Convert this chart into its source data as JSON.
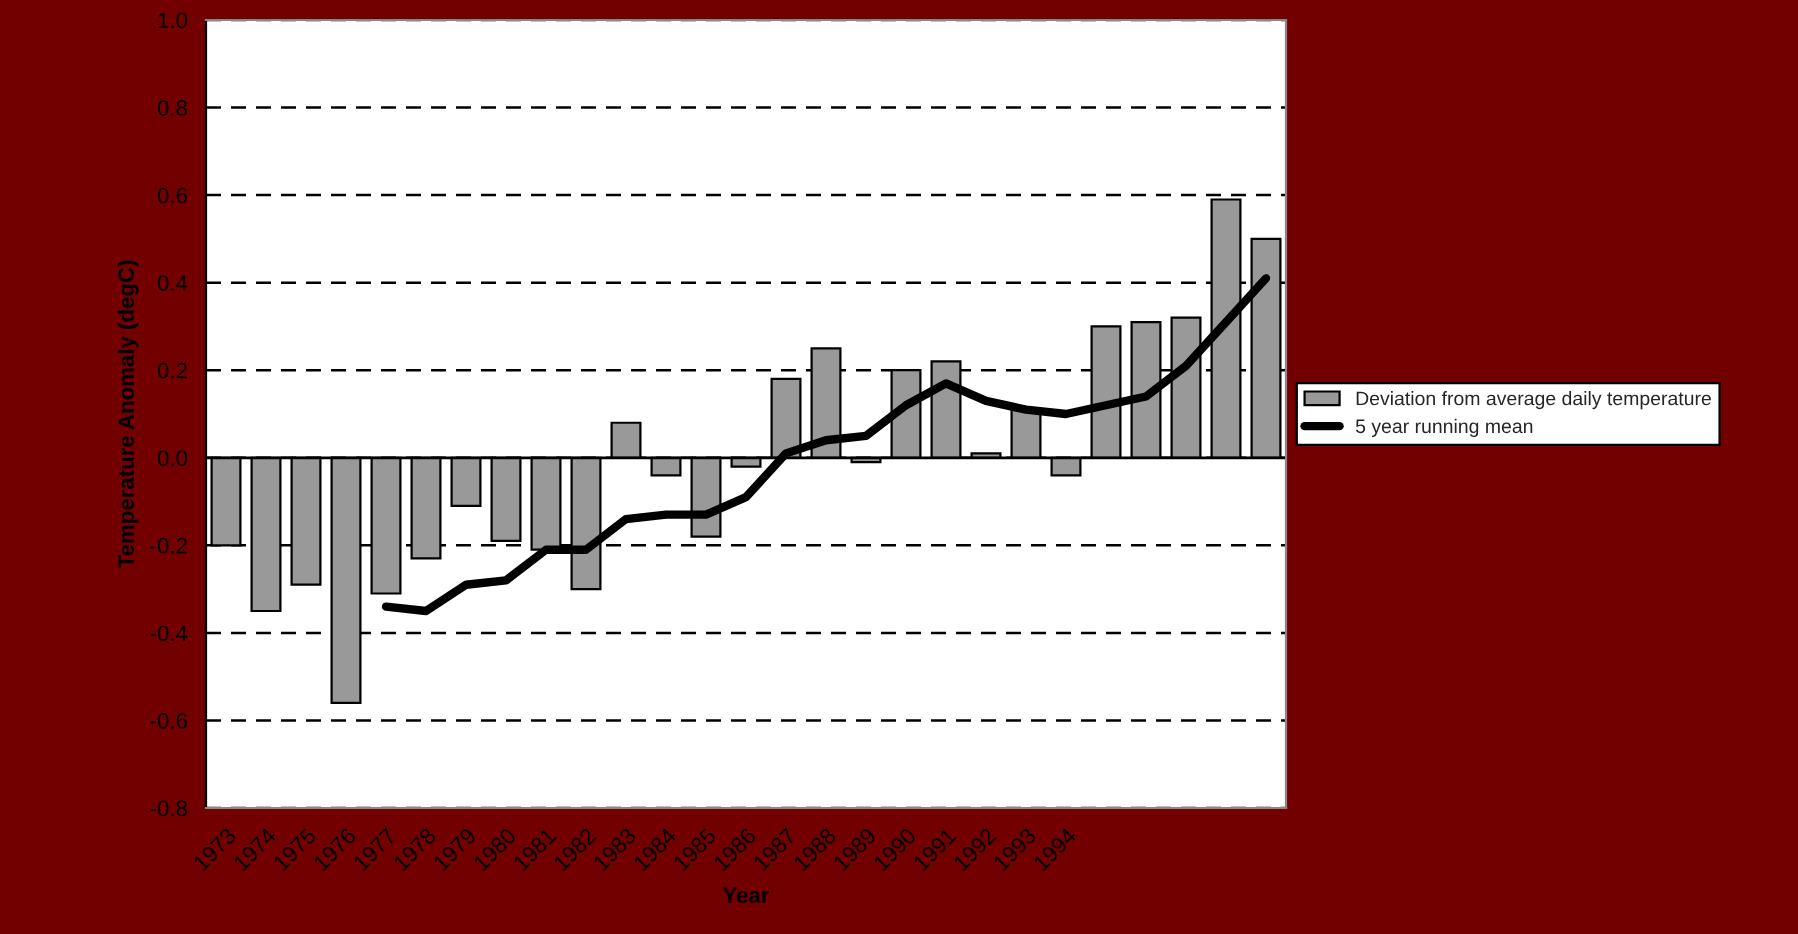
{
  "chart_data": {
    "type": "bar",
    "xlabel": "Year",
    "ylabel": "Temperature Anomaly (degC)",
    "categories": [
      "1973",
      "1974",
      "1975",
      "1976",
      "1977",
      "1978",
      "1979",
      "1980",
      "1981",
      "1982",
      "1983",
      "1984",
      "1985",
      "1986",
      "1987",
      "1988",
      "1989",
      "1990",
      "1991",
      "1992",
      "1993",
      "1994",
      null,
      null,
      null,
      null,
      null
    ],
    "series": [
      {
        "name": "Deviation from average daily temperature",
        "color": "#999999",
        "values": [
          -0.2,
          -0.35,
          -0.29,
          -0.56,
          -0.31,
          -0.23,
          -0.11,
          -0.19,
          -0.21,
          -0.3,
          0.08,
          -0.04,
          -0.18,
          -0.02,
          0.18,
          0.25,
          -0.01,
          0.2,
          0.22,
          0.01,
          0.11,
          -0.04,
          0.3,
          0.31,
          0.32,
          0.59,
          0.5
        ]
      },
      {
        "name": "5 year running mean",
        "type": "line",
        "color": "#000000",
        "line_style": "solid",
        "values": [
          null,
          null,
          null,
          null,
          -0.34,
          -0.35,
          -0.29,
          -0.28,
          -0.21,
          -0.21,
          -0.14,
          -0.13,
          -0.13,
          -0.09,
          0.01,
          0.04,
          0.05,
          0.12,
          0.17,
          0.13,
          0.11,
          0.1,
          0.12,
          0.14,
          0.21,
          0.31,
          0.41
        ]
      }
    ],
    "ylim": [
      -0.8,
      1.0
    ],
    "yticks": [
      {
        "value": -0.8,
        "label": "-0.8"
      },
      {
        "value": -0.6,
        "label": "-0.6"
      },
      {
        "value": -0.4,
        "label": "-0.4"
      },
      {
        "value": -0.2,
        "label": "-0.2"
      },
      {
        "value": 0,
        "label": "0.0"
      },
      {
        "value": 0.2,
        "label": "0.2"
      },
      {
        "value": 0.4,
        "label": "0.4"
      },
      {
        "value": 0.6,
        "label": "0.6"
      },
      {
        "value": 0.8,
        "label": "0.8"
      },
      {
        "value": 1.0,
        "label": "1.0"
      }
    ],
    "grid": "y",
    "legend": "right"
  }
}
